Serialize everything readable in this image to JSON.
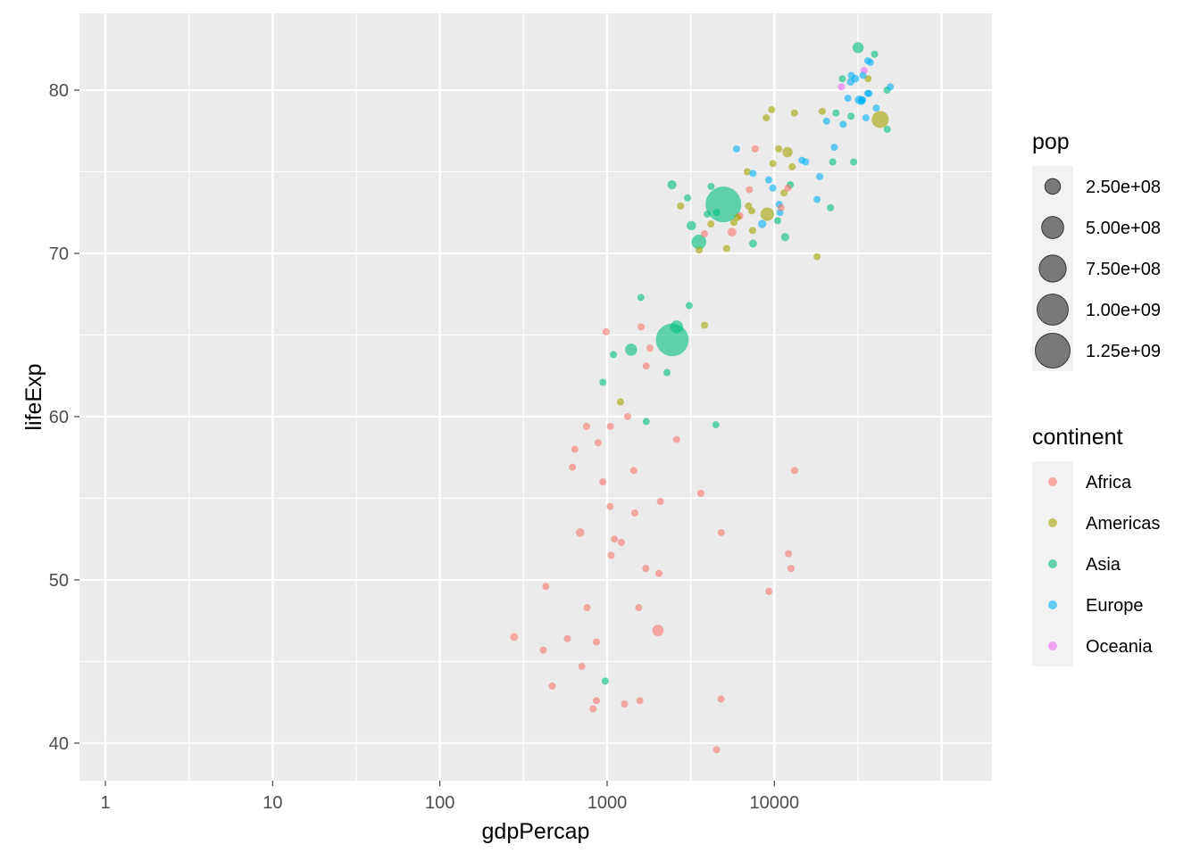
{
  "chart_data": {
    "type": "scatter",
    "xlabel": "gdpPercap",
    "ylabel": "lifeExp",
    "x_scale": "log10",
    "xlim": [
      0.7,
      200000
    ],
    "ylim": [
      37.7,
      84.7
    ],
    "x_ticks": [
      {
        "value": 1,
        "label": "1"
      },
      {
        "value": 10,
        "label": "10"
      },
      {
        "value": 100,
        "label": "100"
      },
      {
        "value": 1000,
        "label": "1000"
      },
      {
        "value": 10000,
        "label": "10000"
      }
    ],
    "y_ticks": [
      {
        "value": 40,
        "label": "40"
      },
      {
        "value": 50,
        "label": "50"
      },
      {
        "value": 60,
        "label": "60"
      },
      {
        "value": 70,
        "label": "70"
      },
      {
        "value": 80,
        "label": "80"
      }
    ],
    "grid": true,
    "legend_position": "right",
    "size_legend": {
      "title": "pop",
      "breaks": [
        {
          "value": 250000000,
          "label": "2.50e+08"
        },
        {
          "value": 500000000,
          "label": "5.00e+08"
        },
        {
          "value": 750000000,
          "label": "7.50e+08"
        },
        {
          "value": 1000000000,
          "label": "1.00e+09"
        },
        {
          "value": 1250000000,
          "label": "1.25e+09"
        }
      ]
    },
    "color_legend": {
      "title": "continent",
      "entries": [
        {
          "name": "Africa",
          "color": "#F8766D"
        },
        {
          "name": "Americas",
          "color": "#A3A500"
        },
        {
          "name": "Asia",
          "color": "#00BF7D"
        },
        {
          "name": "Europe",
          "color": "#00B0F6"
        },
        {
          "name": "Oceania",
          "color": "#E76BF3"
        }
      ]
    },
    "series": [
      {
        "name": "Africa",
        "color": "#F8766D",
        "points": [
          [
            6223,
            72.3,
            33000000
          ],
          [
            4797,
            42.7,
            12400000
          ],
          [
            1441,
            56.7,
            8100000
          ],
          [
            12570,
            50.7,
            1600000
          ],
          [
            1217,
            52.3,
            14300000
          ],
          [
            430,
            49.6,
            8400000
          ],
          [
            2042,
            50.4,
            17700000
          ],
          [
            706,
            44.7,
            4400000
          ],
          [
            1704,
            50.7,
            10200000
          ],
          [
            986,
            65.2,
            700000
          ],
          [
            278,
            46.5,
            64600000
          ],
          [
            3633,
            55.3,
            3800000
          ],
          [
            1545,
            48.3,
            18000000
          ],
          [
            2082,
            54.8,
            500000
          ],
          [
            5581,
            71.3,
            80300000
          ],
          [
            12154,
            51.6,
            600000
          ],
          [
            641,
            58.0,
            4900000
          ],
          [
            690,
            52.9,
            76500000
          ],
          [
            13206,
            56.7,
            1500000
          ],
          [
            753,
            59.4,
            1700000
          ],
          [
            1327,
            60.0,
            22900000
          ],
          [
            943,
            56.0,
            9900000
          ],
          [
            579,
            46.4,
            1500000
          ],
          [
            1463,
            54.1,
            35600000
          ],
          [
            1569,
            42.6,
            2000000
          ],
          [
            415,
            45.7,
            3200000
          ],
          [
            12057,
            74.0,
            6000000
          ],
          [
            1045,
            59.4,
            19200000
          ],
          [
            759,
            48.3,
            13300000
          ],
          [
            1042,
            54.5,
            12000000
          ],
          [
            1803,
            64.2,
            3300000
          ],
          [
            10957,
            72.8,
            1300000
          ],
          [
            3820,
            71.2,
            33800000
          ],
          [
            824,
            42.1,
            19900000
          ],
          [
            4811,
            52.9,
            2100000
          ],
          [
            620,
            56.9,
            12900000
          ],
          [
            2014,
            46.9,
            135000000
          ],
          [
            7670,
            76.4,
            800000
          ],
          [
            863,
            46.2,
            8900000
          ],
          [
            1598,
            65.5,
            200000
          ],
          [
            1712,
            63.1,
            12300000
          ],
          [
            863,
            42.6,
            6100000
          ],
          [
            9270,
            49.3,
            44000000
          ],
          [
            2602,
            58.6,
            42300000
          ],
          [
            4513,
            39.6,
            1100000
          ],
          [
            1107,
            52.5,
            38100000
          ],
          [
            883,
            58.4,
            5700000
          ],
          [
            7093,
            73.9,
            10300000
          ],
          [
            1056,
            51.5,
            29200000
          ],
          [
            1271,
            42.4,
            11700000
          ],
          [
            470,
            43.5,
            12300000
          ]
        ]
      },
      {
        "name": "Americas",
        "color": "#A3A500",
        "points": [
          [
            12779,
            75.3,
            40300000
          ],
          [
            3822,
            65.6,
            9100000
          ],
          [
            9066,
            72.4,
            190000000
          ],
          [
            36319,
            80.7,
            33400000
          ],
          [
            13172,
            78.6,
            16300000
          ],
          [
            7007,
            72.9,
            44200000
          ],
          [
            9645,
            78.8,
            4100000
          ],
          [
            8948,
            78.3,
            11400000
          ],
          [
            6025,
            72.2,
            9300000
          ],
          [
            6873,
            75.0,
            13800000
          ],
          [
            5728,
            71.9,
            6900000
          ],
          [
            5186,
            70.3,
            12600000
          ],
          [
            1202,
            60.9,
            8500000
          ],
          [
            3548,
            70.2,
            7500000
          ],
          [
            7321,
            72.6,
            2800000
          ],
          [
            11977,
            76.2,
            108700000
          ],
          [
            2749,
            72.9,
            5700000
          ],
          [
            9809,
            75.5,
            3200000
          ],
          [
            4173,
            71.8,
            6700000
          ],
          [
            7409,
            71.4,
            28700000
          ],
          [
            19329,
            78.7,
            3900000
          ],
          [
            18009,
            69.8,
            1100000
          ],
          [
            42952,
            78.2,
            301100000
          ],
          [
            10611,
            76.4,
            3400000
          ],
          [
            11416,
            73.7,
            26100000
          ]
        ]
      },
      {
        "name": "Asia",
        "color": "#00BF7D",
        "points": [
          [
            975,
            43.8,
            31900000
          ],
          [
            29796,
            75.6,
            700000
          ],
          [
            1391,
            64.1,
            150400000
          ],
          [
            1713,
            59.7,
            14100000
          ],
          [
            4959,
            73.0,
            1318700000
          ],
          [
            39725,
            82.2,
            6900000
          ],
          [
            2452,
            64.7,
            1110400000
          ],
          [
            3541,
            70.7,
            223500000
          ],
          [
            11606,
            71.0,
            69500000
          ],
          [
            4471,
            59.5,
            27500000
          ],
          [
            25523,
            80.7,
            6400000
          ],
          [
            31656,
            82.6,
            127500000
          ],
          [
            4519,
            72.5,
            6100000
          ],
          [
            1593,
            67.3,
            23300000
          ],
          [
            23348,
            78.6,
            49000000
          ],
          [
            47307,
            77.6,
            2500000
          ],
          [
            10461,
            72.0,
            3900000
          ],
          [
            12452,
            74.2,
            24800000
          ],
          [
            3096,
            66.8,
            2900000
          ],
          [
            944,
            62.1,
            47800000
          ],
          [
            1091,
            63.8,
            28900000
          ],
          [
            22316,
            75.6,
            3200000
          ],
          [
            2606,
            65.5,
            169300000
          ],
          [
            3190,
            71.7,
            91100000
          ],
          [
            21655,
            72.8,
            27600000
          ],
          [
            47143,
            80.0,
            4600000
          ],
          [
            3970,
            72.4,
            20400000
          ],
          [
            4185,
            74.1,
            19300000
          ],
          [
            28718,
            78.4,
            23200000
          ],
          [
            7458,
            70.6,
            65100000
          ],
          [
            2442,
            74.2,
            85300000
          ],
          [
            3025,
            73.4,
            4000000
          ],
          [
            2281,
            62.7,
            22200000
          ]
        ]
      },
      {
        "name": "Europe",
        "color": "#00B0F6",
        "points": [
          [
            5937,
            76.4,
            3600000
          ],
          [
            36126,
            79.8,
            8200000
          ],
          [
            33693,
            79.4,
            10400000
          ],
          [
            7446,
            74.9,
            4600000
          ],
          [
            10681,
            73.0,
            7300000
          ],
          [
            14619,
            75.7,
            4500000
          ],
          [
            22833,
            76.5,
            10200000
          ],
          [
            35278,
            78.3,
            5500000
          ],
          [
            33207,
            79.3,
            5200000
          ],
          [
            30470,
            80.7,
            61100000
          ],
          [
            32170,
            79.4,
            82400000
          ],
          [
            27538,
            79.5,
            10700000
          ],
          [
            18009,
            73.3,
            10000000
          ],
          [
            36181,
            81.8,
            300000
          ],
          [
            40676,
            78.9,
            4100000
          ],
          [
            28570,
            80.5,
            58100000
          ],
          [
            9254,
            74.5,
            700000
          ],
          [
            36798,
            79.8,
            16600000
          ],
          [
            49357,
            80.2,
            4600000
          ],
          [
            15390,
            75.6,
            38500000
          ],
          [
            20510,
            78.1,
            10600000
          ],
          [
            10808,
            72.5,
            22300000
          ],
          [
            9786,
            74.0,
            10200000
          ],
          [
            18678,
            74.7,
            5400000
          ],
          [
            25768,
            77.9,
            2000000
          ],
          [
            28821,
            80.9,
            40400000
          ],
          [
            33860,
            80.9,
            9000000
          ],
          [
            37506,
            81.7,
            7600000
          ],
          [
            8458,
            71.8,
            71200000
          ],
          [
            33203,
            79.4,
            60800000
          ]
        ]
      },
      {
        "name": "Oceania",
        "color": "#E76BF3",
        "points": [
          [
            34435,
            81.2,
            20400000
          ],
          [
            25185,
            80.2,
            4100000
          ]
        ]
      }
    ]
  }
}
